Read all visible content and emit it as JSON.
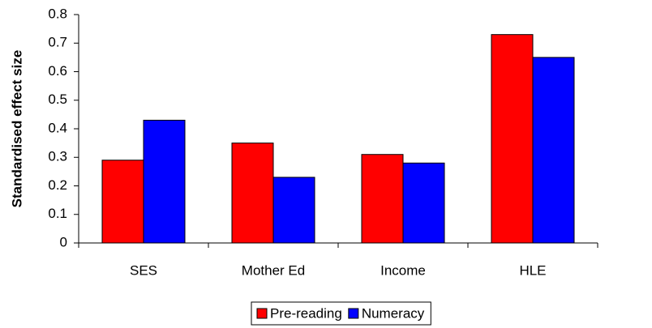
{
  "chart_data": {
    "type": "bar",
    "y_label": "Standardised effect size",
    "categories": [
      "SES",
      "Mother Ed",
      "Income",
      "HLE"
    ],
    "series": [
      {
        "name": "Pre-reading",
        "color": "#ff0000",
        "values": [
          0.29,
          0.35,
          0.31,
          0.73
        ]
      },
      {
        "name": "Numeracy",
        "color": "#0000ff",
        "values": [
          0.43,
          0.23,
          0.28,
          0.65
        ]
      }
    ],
    "ylim": [
      0,
      0.8
    ],
    "yticks": [
      0,
      0.1,
      0.2,
      0.3,
      0.4,
      0.5,
      0.6,
      0.7,
      0.8
    ],
    "grid": false,
    "legend": "bottom"
  }
}
